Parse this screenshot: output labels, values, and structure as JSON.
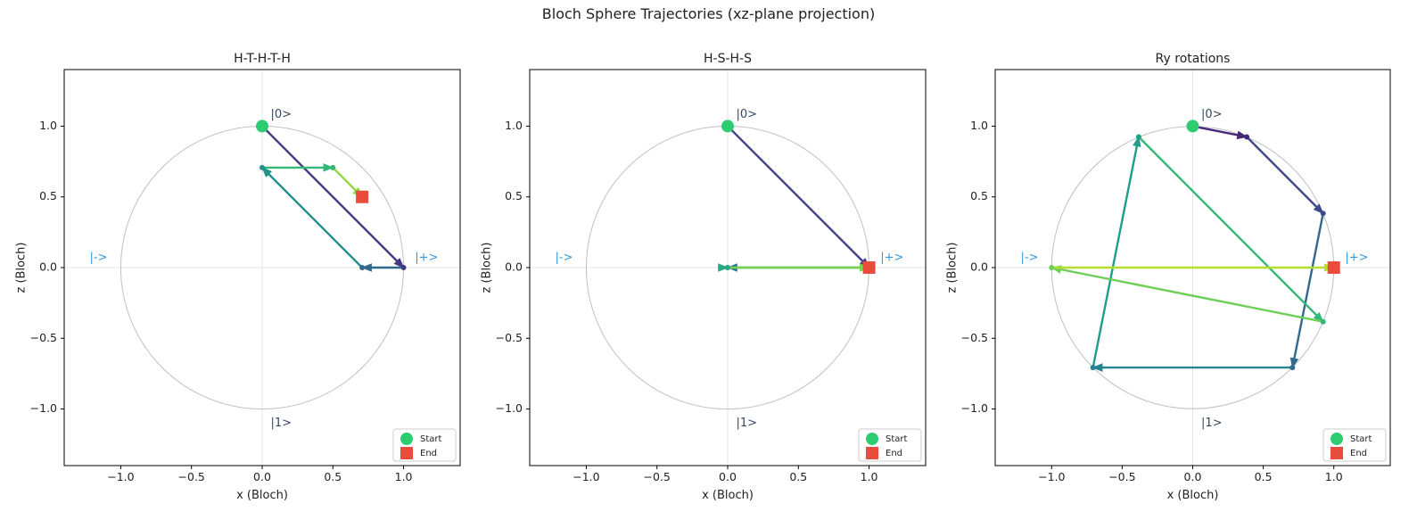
{
  "figure_title": "Bloch Sphere Trajectories (xz-plane projection)",
  "colors": {
    "circle": "#c0c0c0",
    "axis_line": "#dddddd",
    "basis_z": "#34495e",
    "basis_x": "#3498db",
    "start": "#2ecc71",
    "end": "#e74c3c",
    "frame": "#000000"
  },
  "chart_data": [
    {
      "type": "line",
      "title": "H-T-H-T-H",
      "xlabel": "x (Bloch)",
      "ylabel": "z (Bloch)",
      "xlim": [
        -1.4,
        1.4
      ],
      "ylim": [
        -1.4,
        1.4
      ],
      "xticks": [
        "−1.0",
        "−0.5",
        "0.0",
        "0.5",
        "1.0"
      ],
      "yticks": [
        "−1.0",
        "−0.5",
        "0.0",
        "0.5",
        "1.0"
      ],
      "basis_labels": {
        "zero": "|0>",
        "one": "|1>",
        "plus": "|+>",
        "minus": "|->"
      },
      "legend": {
        "placement": "lower-right",
        "entries": [
          "Start",
          "End"
        ]
      },
      "trajectory": {
        "x": [
          0.0,
          1.0,
          0.707,
          0.0,
          0.5,
          0.707
        ],
        "z": [
          1.0,
          0.0,
          0.0,
          0.707,
          0.707,
          0.5
        ]
      }
    },
    {
      "type": "line",
      "title": "H-S-H-S",
      "xlabel": "x (Bloch)",
      "ylabel": "z (Bloch)",
      "xlim": [
        -1.4,
        1.4
      ],
      "ylim": [
        -1.4,
        1.4
      ],
      "xticks": [
        "−1.0",
        "−0.5",
        "0.0",
        "0.5",
        "1.0"
      ],
      "yticks": [
        "−1.0",
        "−0.5",
        "0.0",
        "0.5",
        "1.0"
      ],
      "basis_labels": {
        "zero": "|0>",
        "one": "|1>",
        "plus": "|+>",
        "minus": "|->"
      },
      "legend": {
        "placement": "lower-right",
        "entries": [
          "Start",
          "End"
        ]
      },
      "trajectory": {
        "x": [
          0.0,
          1.0,
          0.0,
          0.0,
          1.0
        ],
        "z": [
          1.0,
          0.0,
          0.0,
          0.0,
          0.0
        ]
      }
    },
    {
      "type": "line",
      "title": "Ry rotations",
      "xlabel": "x (Bloch)",
      "ylabel": "z (Bloch)",
      "xlim": [
        -1.4,
        1.4
      ],
      "ylim": [
        -1.4,
        1.4
      ],
      "xticks": [
        "−1.0",
        "−0.5",
        "0.0",
        "0.5",
        "1.0"
      ],
      "yticks": [
        "−1.0",
        "−0.5",
        "0.0",
        "0.5",
        "1.0"
      ],
      "basis_labels": {
        "zero": "|0>",
        "one": "|1>",
        "plus": "|+>",
        "minus": "|->"
      },
      "legend": {
        "placement": "lower-right",
        "entries": [
          "Start",
          "End"
        ]
      },
      "trajectory": {
        "x": [
          0.0,
          0.383,
          0.924,
          0.707,
          -0.707,
          -0.383,
          0.924,
          -1.0,
          1.0
        ],
        "z": [
          1.0,
          0.924,
          0.383,
          -0.707,
          -0.707,
          0.924,
          -0.383,
          0.0,
          0.0
        ]
      }
    }
  ]
}
